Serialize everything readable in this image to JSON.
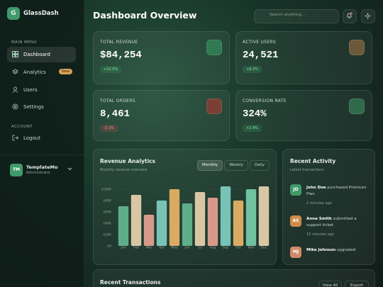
{
  "sidebar": {
    "logo": "G",
    "brand": "GlassDash",
    "section_main": "MAIN MENU",
    "menu": [
      {
        "label": "Dashboard"
      },
      {
        "label": "Analytics",
        "badge": "New"
      },
      {
        "label": "Users"
      },
      {
        "label": "Settings"
      }
    ],
    "section_account": "ACCOUNT",
    "logout": "Logout",
    "user": {
      "initials": "TM",
      "name": "TemplateMo",
      "role": "Administrator"
    }
  },
  "header": {
    "title": "Dashboard Overview",
    "search_placeholder": "Search anything..."
  },
  "stats": [
    {
      "label": "TOTAL REVENUE",
      "value": "$84,254",
      "change": "+12.5%"
    },
    {
      "label": "ACTIVE USERS",
      "value": "24,521",
      "change": "+8.2%"
    },
    {
      "label": "TOTAL ORDERS",
      "value": "8,461",
      "change": "-3.1%"
    },
    {
      "label": "CONVERSION RATE",
      "value": "324%",
      "change": "+2.4%"
    }
  ],
  "revenue_card": {
    "title": "Revenue Analytics",
    "subtitle": "Monthly revenue overview",
    "tabs": [
      "Monthly",
      "Weekly",
      "Daily"
    ]
  },
  "chart_data": {
    "type": "bar",
    "categories": [
      "Jan",
      "Feb",
      "Mar",
      "Apr",
      "May",
      "Jun",
      "Jul",
      "Aug",
      "Sep",
      "Oct",
      "Nov",
      "Dec"
    ],
    "values": [
      70000,
      90000,
      55000,
      80000,
      100000,
      75000,
      95000,
      85000,
      105000,
      80000,
      100000,
      105000
    ],
    "colors": [
      "#5fae8a",
      "#d9c7a4",
      "#d79a8a",
      "#79c3b6",
      "#d9ab62",
      "#5fae8a",
      "#d9c7a4",
      "#d79a8a",
      "#79c3b6",
      "#d9ab62",
      "#6fc1a0",
      "#d9c7a4"
    ],
    "ylim": [
      0,
      105000
    ],
    "yticks": [
      {
        "value": 0,
        "label": "$0"
      },
      {
        "value": 20000,
        "label": "$20K"
      },
      {
        "value": 40000,
        "label": "$40K"
      },
      {
        "value": 60000,
        "label": "$60K"
      },
      {
        "value": 80000,
        "label": "$80K"
      },
      {
        "value": 100000,
        "label": "$100K"
      }
    ],
    "grid": true
  },
  "activity": {
    "title": "Recent Activity",
    "subtitle": "Latest transactions",
    "items": [
      {
        "initials": "JD",
        "name": "John Doe",
        "action": "purchased Premium Plan",
        "time": "2 minutes ago"
      },
      {
        "initials": "AS",
        "name": "Anna Smith",
        "action": "submitted a support ticket",
        "time": "15 minutes ago"
      },
      {
        "initials": "MJ",
        "name": "Mike Johnson",
        "action": "upgraded"
      }
    ]
  },
  "transactions": {
    "title": "Recent Transactions",
    "buttons": [
      "View All",
      "Export"
    ]
  }
}
